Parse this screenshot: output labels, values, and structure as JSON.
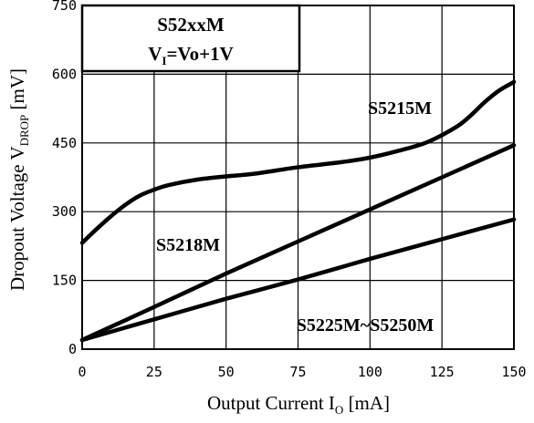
{
  "chart_data": {
    "type": "line",
    "xlabel": "Output Current I",
    "xlabel_sub": "O",
    "xlabel_unit": " [mA]",
    "ylabel": "Dropout Voltage V",
    "ylabel_sub": "DROP",
    "ylabel_unit": " [mV]",
    "xlim": [
      0,
      150
    ],
    "ylim": [
      0,
      750
    ],
    "xticks": [
      "0",
      "25",
      "50",
      "75",
      "100",
      "125",
      "150"
    ],
    "yticks": [
      "0",
      "150",
      "300",
      "450",
      "600",
      "750"
    ],
    "grid": true,
    "legend_box": {
      "line1": "S52xxM",
      "line2_main": "V",
      "line2_sub": "I",
      "line2_rest": "=Vo+1V",
      "position": "top-left"
    },
    "series": [
      {
        "name": "S5215M",
        "x": [
          0,
          5,
          10,
          15,
          20,
          25,
          30,
          40,
          50,
          60,
          75,
          90,
          100,
          110,
          120,
          130,
          135,
          140,
          145,
          150
        ],
        "y": [
          232,
          262,
          290,
          315,
          335,
          348,
          358,
          370,
          377,
          383,
          397,
          408,
          418,
          433,
          452,
          485,
          510,
          540,
          565,
          583
        ]
      },
      {
        "name": "S5218M",
        "x": [
          0,
          25,
          50,
          75,
          100,
          125,
          150
        ],
        "y": [
          20,
          92,
          165,
          235,
          305,
          375,
          445
        ]
      },
      {
        "name": "S5225M~S5250M",
        "x": [
          0,
          25,
          50,
          75,
          100,
          125,
          150
        ],
        "y": [
          20,
          65,
          110,
          152,
          197,
          240,
          283
        ]
      }
    ]
  }
}
